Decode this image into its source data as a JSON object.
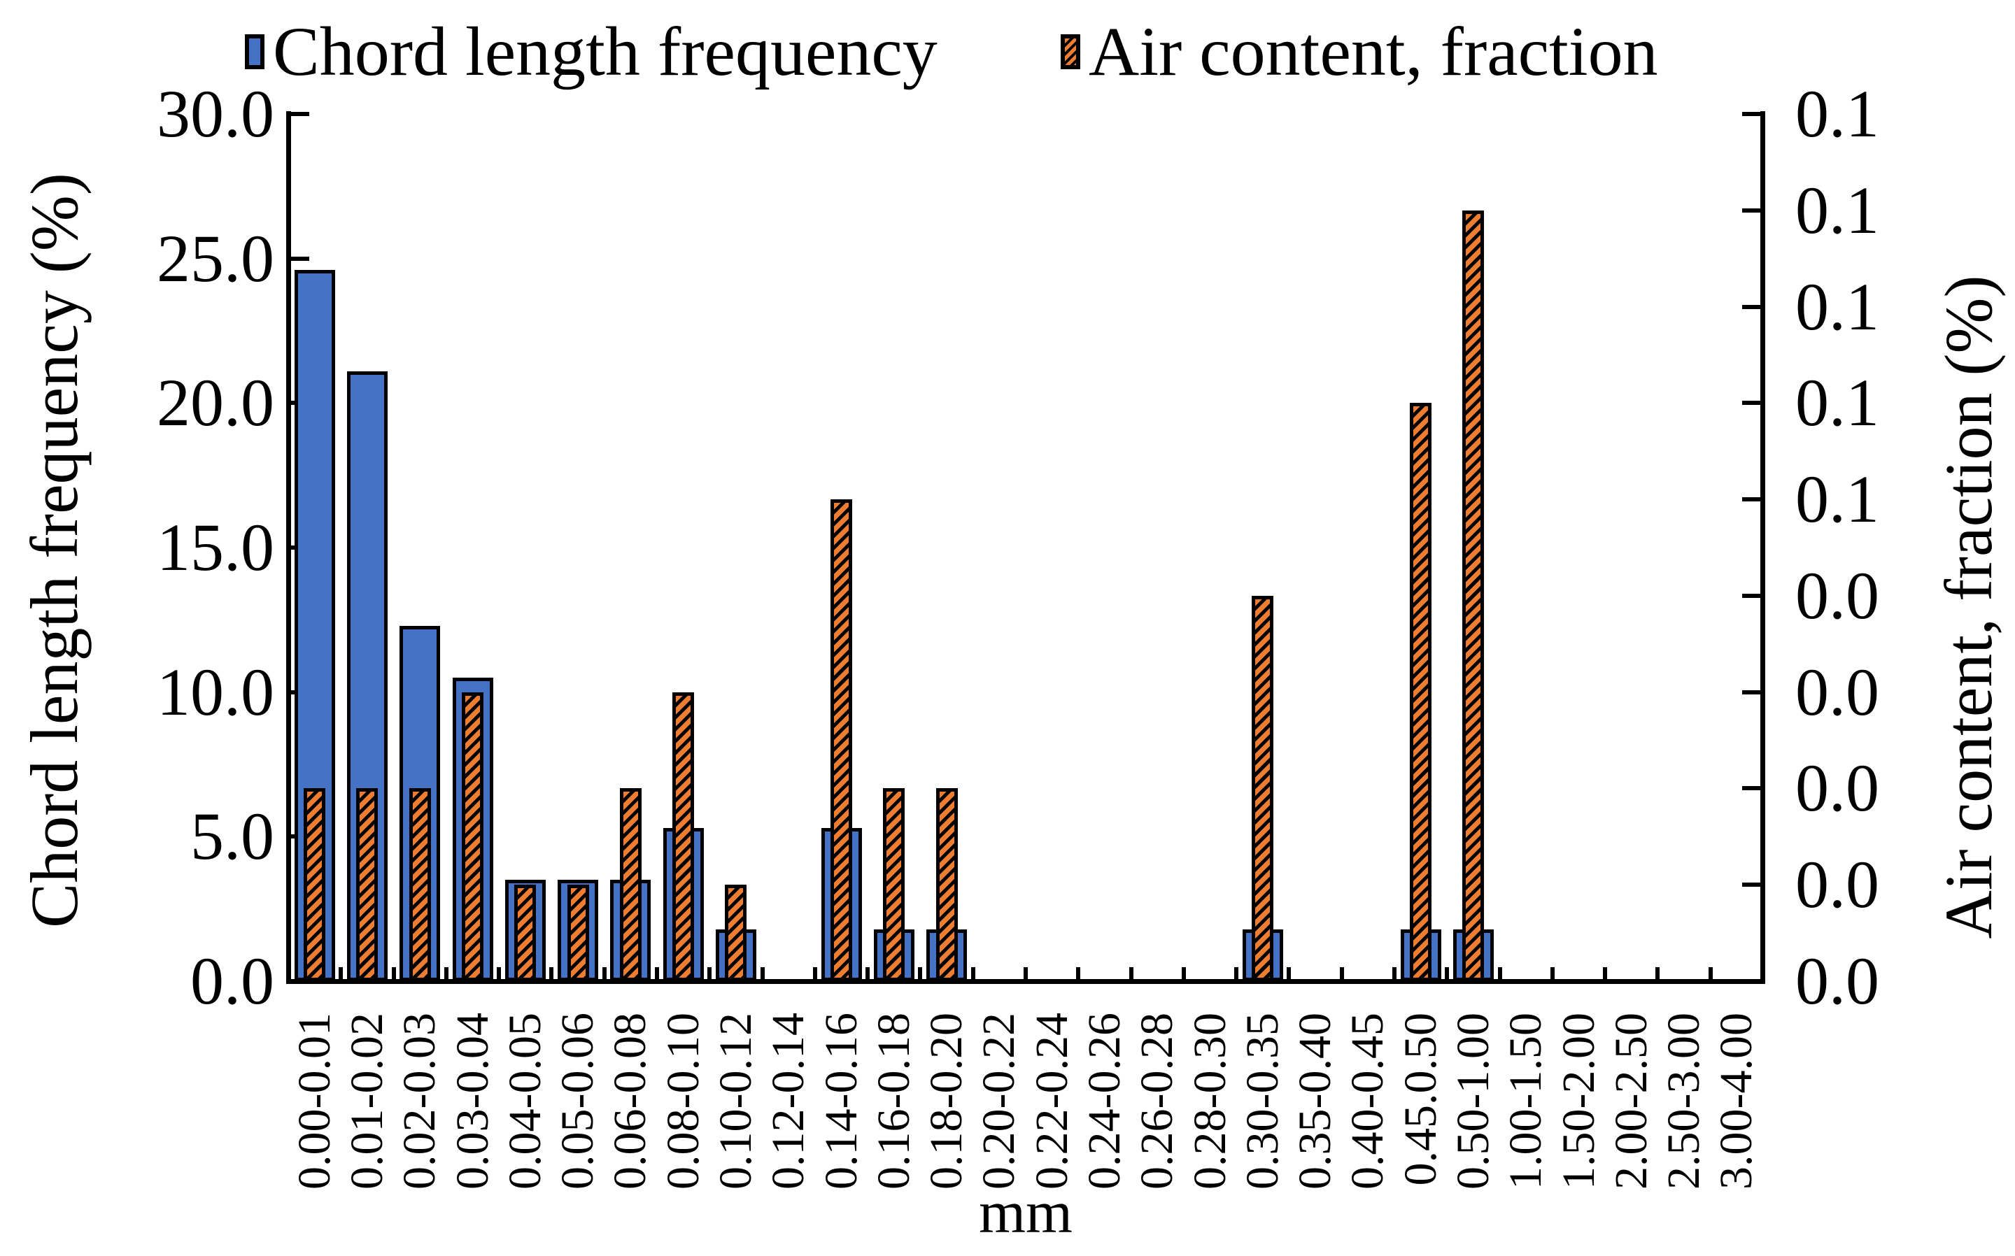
{
  "legend": {
    "items": [
      {
        "label": "Chord length frequency",
        "series": "chord",
        "color": "#4472C4",
        "marker": "solid-blue-square"
      },
      {
        "label": "Air content, fraction",
        "series": "air",
        "color": "#ED7D31",
        "marker": "orange-diagonal-hatch-square"
      }
    ]
  },
  "left_axis": {
    "title": "Chord length frequency (%)",
    "tick_labels": [
      "30.0",
      "25.0",
      "20.0",
      "15.0",
      "10.0",
      "5.0",
      "0.0"
    ],
    "min": 0,
    "max": 30
  },
  "right_axis": {
    "title": "Air content, fraction (%)",
    "tick_labels": [
      "0.1",
      "0.1",
      "0.1",
      "0.1",
      "0.1",
      "0.0",
      "0.0",
      "0.0",
      "0.0",
      "0.0"
    ],
    "min": 0,
    "max": 0.09
  },
  "x_axis": {
    "title": "mm"
  },
  "chart_data": {
    "type": "bar",
    "title": "",
    "xlabel": "mm",
    "grid": false,
    "legend_position": "top",
    "categories": [
      "0.00-0.01",
      "0.01-0.02",
      "0.02-0.03",
      "0.03-0.04",
      "0.04-0.05",
      "0.05-0.06",
      "0.06-0.08",
      "0.08-0.10",
      "0.10-0.12",
      "0.12-0.14",
      "0.14-0.16",
      "0.16-0.18",
      "0.18-0.20",
      "0.20-0.22",
      "0.22-0.24",
      "0.24-0.26",
      "0.26-0.28",
      "0.28-0.30",
      "0.30-0.35",
      "0.35-0.40",
      "0.40-0.45",
      "0.45.0.50",
      "0.50-1.00",
      "1.00-1.50",
      "1.50-2.00",
      "2.00-2.50",
      "2.50-3.00",
      "3.00-4.00"
    ],
    "series": [
      {
        "name": "Chord length frequency",
        "axis": "left",
        "unit": "%",
        "color": "#4472C4",
        "ylim": [
          0,
          30
        ],
        "values": [
          24.6,
          21.1,
          12.3,
          10.5,
          3.5,
          3.5,
          3.5,
          5.3,
          1.8,
          0,
          5.3,
          1.8,
          1.8,
          0,
          0,
          0,
          0,
          0,
          1.8,
          0,
          0,
          1.8,
          1.8,
          0,
          0,
          0,
          0,
          0
        ]
      },
      {
        "name": "Air content, fraction",
        "axis": "right",
        "unit": "fraction (%)",
        "color": "#ED7D31",
        "pattern": "black-diagonal-hatch",
        "ylim": [
          0,
          0.09
        ],
        "values": [
          0.02,
          0.02,
          0.02,
          0.03,
          0.01,
          0.01,
          0.02,
          0.03,
          0.01,
          0,
          0.05,
          0.02,
          0.02,
          0,
          0,
          0,
          0,
          0,
          0.04,
          0,
          0,
          0.06,
          0.08,
          0,
          0,
          0,
          0,
          0
        ]
      }
    ]
  }
}
